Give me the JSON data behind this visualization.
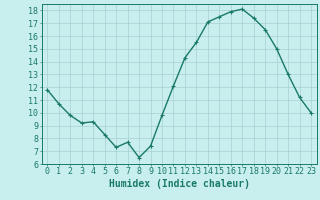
{
  "x": [
    0,
    1,
    2,
    3,
    4,
    5,
    6,
    7,
    8,
    9,
    10,
    11,
    12,
    13,
    14,
    15,
    16,
    17,
    18,
    19,
    20,
    21,
    22,
    23
  ],
  "y": [
    11.8,
    10.7,
    9.8,
    9.2,
    9.3,
    8.3,
    7.3,
    7.7,
    6.5,
    7.4,
    9.8,
    12.1,
    14.3,
    15.5,
    17.1,
    17.5,
    17.9,
    18.1,
    17.4,
    16.5,
    15.0,
    13.0,
    11.2,
    10.0
  ],
  "line_color": "#1a7a6a",
  "marker_color": "#1a7a6a",
  "bg_color": "#c8eeee",
  "grid_color": "#a8d0d0",
  "xlabel": "Humidex (Indice chaleur)",
  "xlim": [
    -0.5,
    23.5
  ],
  "ylim": [
    6,
    18.5
  ],
  "yticks": [
    6,
    7,
    8,
    9,
    10,
    11,
    12,
    13,
    14,
    15,
    16,
    17,
    18
  ],
  "xticks": [
    0,
    1,
    2,
    3,
    4,
    5,
    6,
    7,
    8,
    9,
    10,
    11,
    12,
    13,
    14,
    15,
    16,
    17,
    18,
    19,
    20,
    21,
    22,
    23
  ],
  "xtick_labels": [
    "0",
    "1",
    "2",
    "3",
    "4",
    "5",
    "6",
    "7",
    "8",
    "9",
    "10",
    "11",
    "12",
    "13",
    "14",
    "15",
    "16",
    "17",
    "18",
    "19",
    "20",
    "21",
    "22",
    "23"
  ],
  "label_color": "#1a7a6a",
  "tick_color": "#1a7a6a",
  "xlabel_fontsize": 7,
  "tick_fontsize": 6,
  "line_width": 1.0,
  "marker_size": 2.5
}
